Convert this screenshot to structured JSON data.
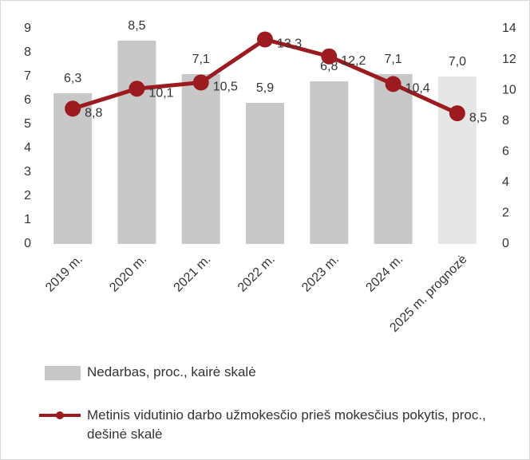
{
  "chart_data": {
    "type": "bar-line",
    "categories": [
      "2019 m.",
      "2020 m.",
      "2021 m.",
      "2022 m.",
      "2023 m.",
      "2024 m.",
      "2025 m. prognozė"
    ],
    "series": [
      {
        "name": "Nedarbas, proc., kairė skalė",
        "type": "bar",
        "color": "#c8c8c8",
        "colors": [
          "#c8c8c8",
          "#c8c8c8",
          "#c8c8c8",
          "#c8c8c8",
          "#c8c8c8",
          "#c8c8c8",
          "#e6e6e6"
        ],
        "values": [
          6.3,
          8.5,
          7.1,
          5.9,
          6.8,
          7.1,
          7.0
        ],
        "value_labels": [
          "6,3",
          "8,5",
          "7,1",
          "5,9",
          "6,8",
          "7,1",
          "7,0"
        ]
      },
      {
        "name": "Metinis vidutinio darbo užmokesčio prieš mokesčius pokytis, proc., dešinė skalė",
        "type": "line",
        "axis": "y2",
        "color": "#9b1b20",
        "values": [
          8.8,
          10.1,
          10.5,
          13.3,
          12.2,
          10.4,
          8.5
        ],
        "value_labels": [
          "8,8",
          "10,1",
          "10,5",
          "13,3",
          "12,2",
          "10,4",
          "8,5"
        ]
      }
    ],
    "ylim": [
      0,
      9
    ],
    "yticks": [
      0,
      1,
      2,
      3,
      4,
      5,
      6,
      7,
      8,
      9
    ],
    "y2lim": [
      0,
      14
    ],
    "y2ticks": [
      0,
      2,
      4,
      6,
      8,
      10,
      12,
      14
    ],
    "legend": "bottom"
  }
}
